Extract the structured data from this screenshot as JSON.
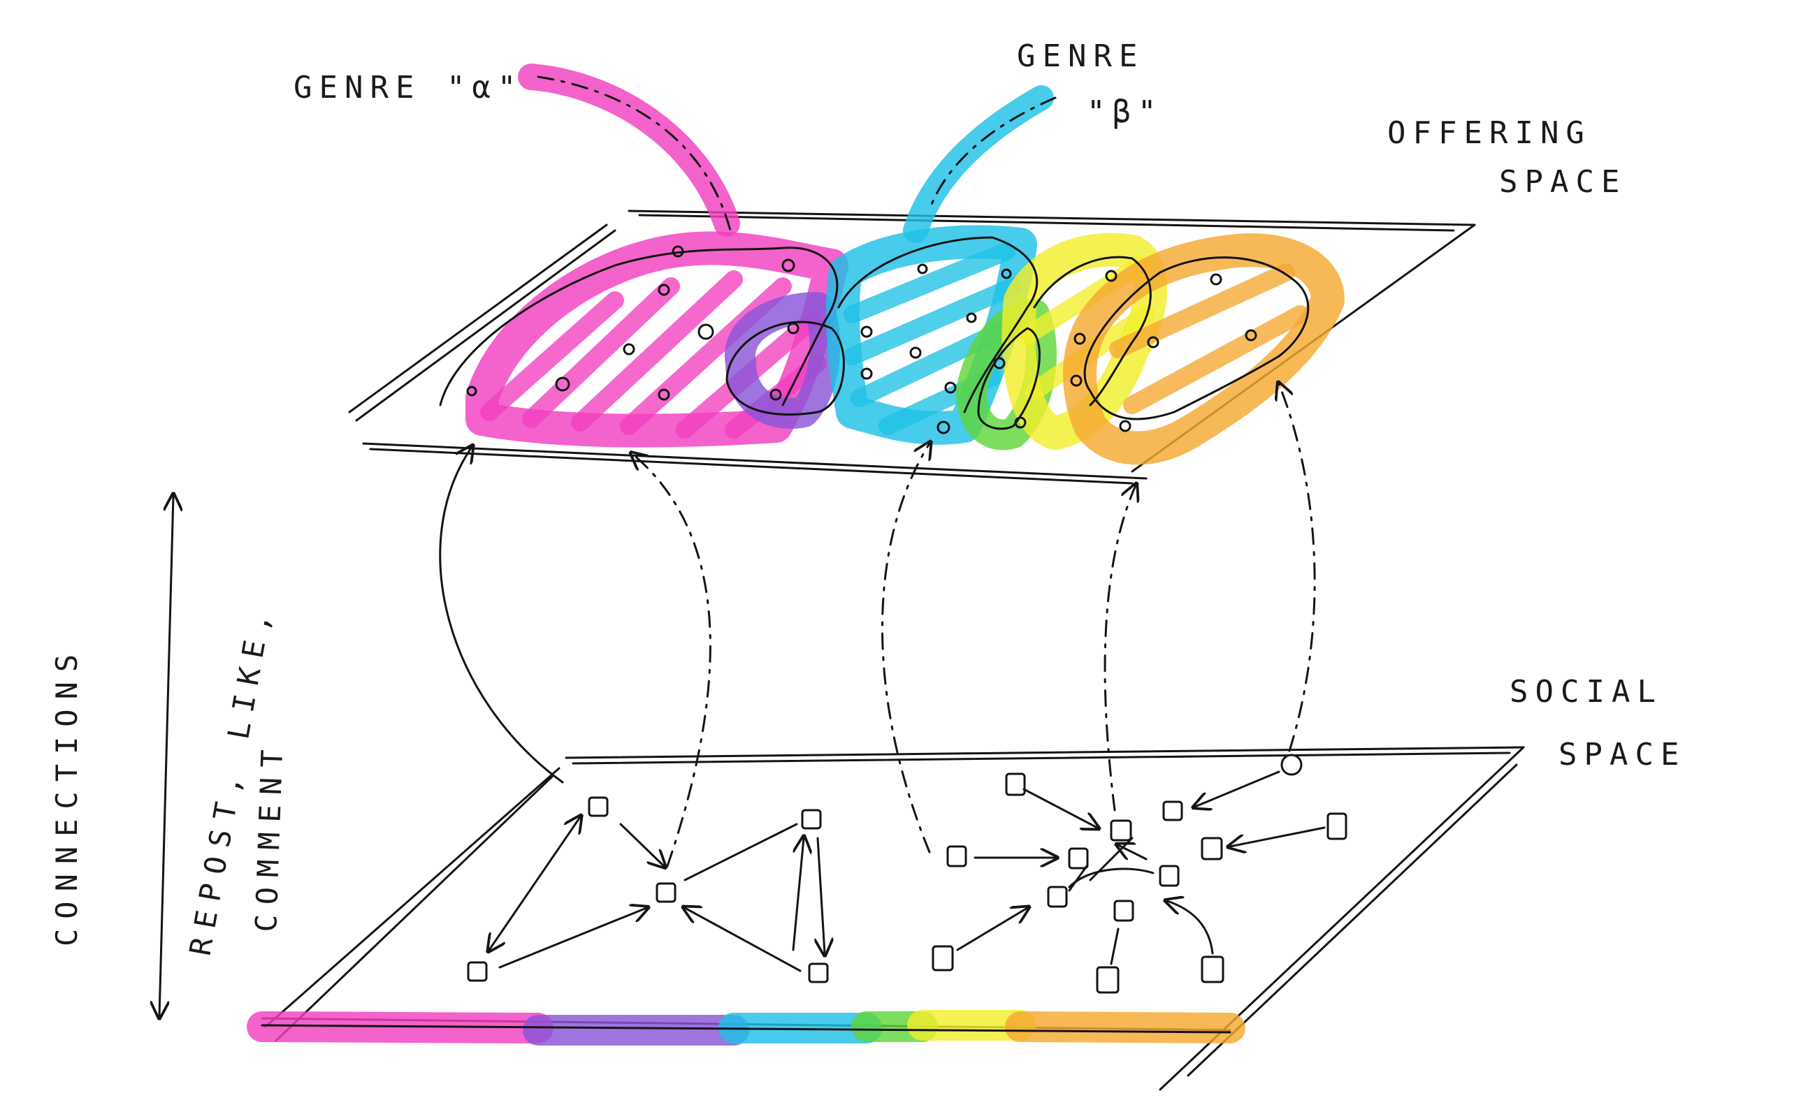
{
  "labels": {
    "genre_alpha": "GENRE \"α\"",
    "genre_beta_line1": "GENRE",
    "genre_beta_line2": "\"β\"",
    "offering_line1": "OFFERING",
    "offering_line2": "SPACE",
    "social_line1": "SOCIAL",
    "social_line2": "SPACE",
    "connections": "CONNECTIONS",
    "repost_like": "REPOST, LIKE,",
    "comment": "COMMENT"
  },
  "colors": {
    "ink": "#141414",
    "pink": "#f23fbf",
    "cyan": "#1fc1e6",
    "purple": "#8a55d8",
    "green": "#5fd63a",
    "yellow": "#f2ee2c",
    "orange": "#f5a831"
  }
}
